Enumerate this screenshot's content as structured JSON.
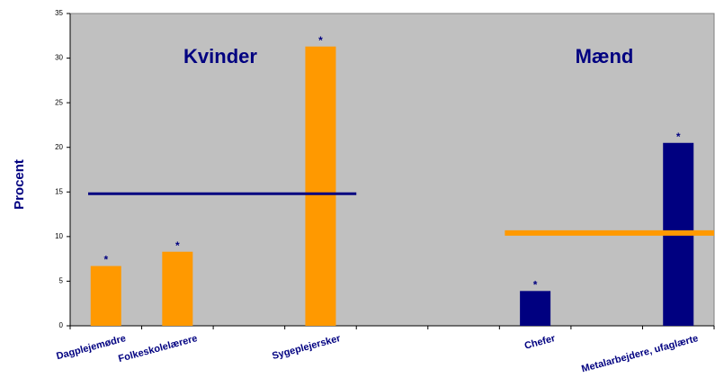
{
  "chart_data": {
    "type": "bar",
    "y_label": "Procent",
    "categories": [
      "Dagplejemødre",
      "Folkeskolelærere",
      null,
      "Sygeplejersker",
      null,
      null,
      "Chefer",
      null,
      "Metalarbejdere, ufaglærte"
    ],
    "values": [
      6.7,
      8.3,
      null,
      31.3,
      null,
      null,
      3.9,
      null,
      20.5
    ],
    "colors": [
      "#ff9900",
      "#ff9900",
      null,
      "#ff9900",
      null,
      null,
      "#000080",
      null,
      "#000080"
    ],
    "markers": [
      "*",
      "*",
      null,
      "*",
      null,
      null,
      "*",
      null,
      "*"
    ],
    "groups": [
      {
        "label": "Kvinder",
        "average": 14.8,
        "line_color": "#000080"
      },
      {
        "label": "Mænd",
        "average": 10.4,
        "line_color": "#ff9900"
      }
    ],
    "ylim": [
      0,
      35
    ],
    "yticks": [
      0,
      5,
      10,
      15,
      20,
      25,
      30,
      35
    ],
    "plot_background": "#c0c0c0"
  }
}
